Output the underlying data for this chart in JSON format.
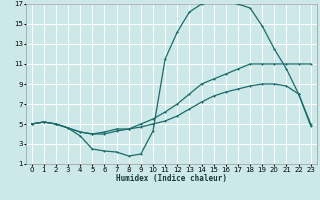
{
  "xlabel": "Humidex (Indice chaleur)",
  "bg_color": "#cde8e8",
  "grid_color": "#ffffff",
  "line_color": "#1a6b6b",
  "xlim": [
    -0.5,
    23.5
  ],
  "ylim": [
    1,
    17
  ],
  "xticks": [
    0,
    1,
    2,
    3,
    4,
    5,
    6,
    7,
    8,
    9,
    10,
    11,
    12,
    13,
    14,
    15,
    16,
    17,
    18,
    19,
    20,
    21,
    22,
    23
  ],
  "yticks": [
    1,
    3,
    5,
    7,
    9,
    11,
    13,
    15,
    17
  ],
  "line_top_x": [
    0,
    1,
    2,
    3,
    4,
    5,
    6,
    7,
    8,
    9,
    10,
    11,
    12,
    13,
    14,
    15,
    16,
    17,
    18,
    19,
    20,
    21,
    22,
    23
  ],
  "line_top_y": [
    5.0,
    5.2,
    5.0,
    4.6,
    3.8,
    2.5,
    2.3,
    2.2,
    1.8,
    2.0,
    4.3,
    11.5,
    14.2,
    16.2,
    17.0,
    17.2,
    17.2,
    17.0,
    16.6,
    14.8,
    12.5,
    10.5,
    8.0,
    5.0
  ],
  "line_mid_x": [
    0,
    1,
    2,
    3,
    4,
    5,
    6,
    7,
    8,
    9,
    10,
    11,
    12,
    13,
    14,
    15,
    16,
    17,
    18,
    19,
    20,
    21,
    22,
    23
  ],
  "line_mid_y": [
    5.0,
    5.2,
    5.0,
    4.6,
    4.2,
    4.0,
    4.2,
    4.5,
    4.5,
    5.0,
    5.5,
    6.2,
    7.0,
    8.0,
    9.0,
    9.5,
    10.0,
    10.5,
    11.0,
    11.0,
    11.0,
    11.0,
    11.0,
    11.0
  ],
  "line_bot_x": [
    0,
    1,
    2,
    3,
    4,
    5,
    6,
    7,
    8,
    9,
    10,
    11,
    12,
    13,
    14,
    15,
    16,
    17,
    18,
    19,
    20,
    21,
    22,
    23
  ],
  "line_bot_y": [
    5.0,
    5.2,
    5.0,
    4.6,
    4.2,
    4.0,
    4.0,
    4.3,
    4.5,
    4.7,
    5.0,
    5.3,
    5.8,
    6.5,
    7.2,
    7.8,
    8.2,
    8.5,
    8.8,
    9.0,
    9.0,
    8.8,
    8.0,
    4.8
  ],
  "marker_top_x": [
    0,
    1,
    2,
    3,
    4,
    5,
    6,
    7,
    8,
    9,
    10,
    11,
    12,
    13,
    14,
    15,
    16,
    17,
    18,
    19,
    20,
    21,
    22,
    23
  ],
  "marker_bot_x": [
    0,
    2,
    9,
    14,
    15,
    16,
    17,
    19,
    20,
    21,
    22,
    23
  ],
  "marker_bot_y": [
    5.0,
    5.0,
    4.7,
    7.2,
    7.8,
    8.2,
    8.5,
    9.0,
    9.0,
    8.8,
    8.0,
    4.8
  ]
}
